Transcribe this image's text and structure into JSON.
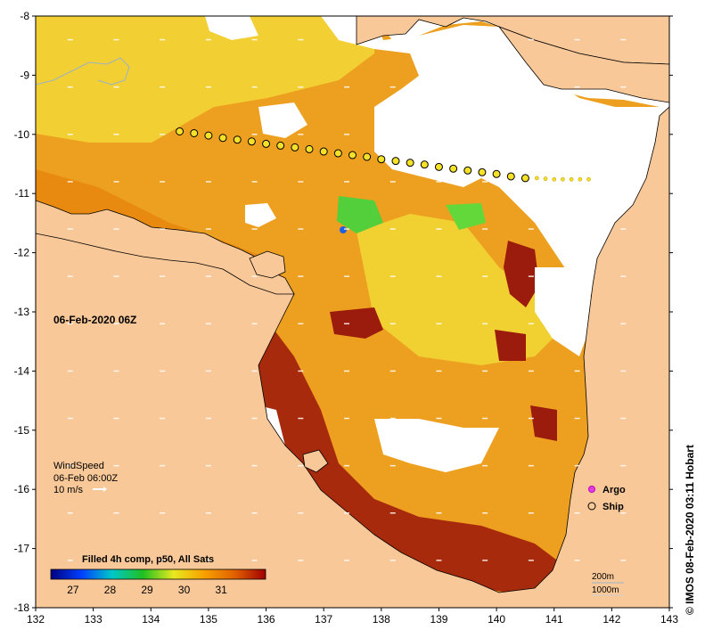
{
  "map": {
    "date_label": "06-Feb-2020 06Z",
    "credit": "© IMOS 08-Feb-2020 03:11 Hobart",
    "lon_ticks": [
      "132",
      "133",
      "134",
      "135",
      "136",
      "137",
      "138",
      "139",
      "140",
      "141",
      "142",
      "143"
    ],
    "lat_ticks": [
      "-8",
      "-9",
      "-10",
      "-11",
      "-12",
      "-13",
      "-14",
      "-15",
      "-16",
      "-17",
      "-18"
    ],
    "lon_range": [
      132,
      143
    ],
    "lat_range": [
      -18,
      -8
    ],
    "colors": {
      "land": "#f9c898",
      "no_data": "#ffffff",
      "warm_orange": "#e98e12",
      "hot_red": "#9b1b0c",
      "yellow": "#f5e228",
      "green": "#52cf3a"
    }
  },
  "wind": {
    "title": "WindSpeed",
    "time": "06-Feb 06:00Z",
    "scale": "10 m/s"
  },
  "legend": {
    "argo": "Argo",
    "ship": "Ship"
  },
  "colorbar": {
    "title": "Filled 4h comp, p50, All Sats",
    "ticks": [
      "27",
      "28",
      "29",
      "30",
      "31"
    ],
    "range": [
      26.4,
      32.2
    ],
    "stops": [
      "#00007f",
      "#0040ff",
      "#00c8c8",
      "#20c020",
      "#e8e820",
      "#f8a000",
      "#e06000",
      "#a00000"
    ]
  },
  "bathymetry": {
    "label_200": "200m",
    "label_1000": "1000m"
  },
  "ship_track": [
    [
      134.5,
      -9.95
    ],
    [
      134.75,
      -9.98
    ],
    [
      135.0,
      -10.02
    ],
    [
      135.25,
      -10.06
    ],
    [
      135.5,
      -10.09
    ],
    [
      135.75,
      -10.12
    ],
    [
      136.0,
      -10.16
    ],
    [
      136.25,
      -10.19
    ],
    [
      136.5,
      -10.22
    ],
    [
      136.75,
      -10.25
    ],
    [
      137.0,
      -10.29
    ],
    [
      137.25,
      -10.32
    ],
    [
      137.5,
      -10.35
    ],
    [
      137.75,
      -10.38
    ],
    [
      138.0,
      -10.42
    ],
    [
      138.25,
      -10.45
    ],
    [
      138.5,
      -10.48
    ],
    [
      138.75,
      -10.51
    ],
    [
      139.0,
      -10.55
    ],
    [
      139.25,
      -10.58
    ],
    [
      139.5,
      -10.61
    ],
    [
      139.75,
      -10.64
    ],
    [
      140.0,
      -10.67
    ],
    [
      140.25,
      -10.71
    ],
    [
      140.5,
      -10.74
    ]
  ],
  "ship_track_small": [
    [
      140.7,
      -10.74
    ],
    [
      140.85,
      -10.75
    ],
    [
      141.0,
      -10.76
    ],
    [
      141.15,
      -10.76
    ],
    [
      141.3,
      -10.76
    ],
    [
      141.45,
      -10.76
    ],
    [
      141.6,
      -10.76
    ]
  ]
}
